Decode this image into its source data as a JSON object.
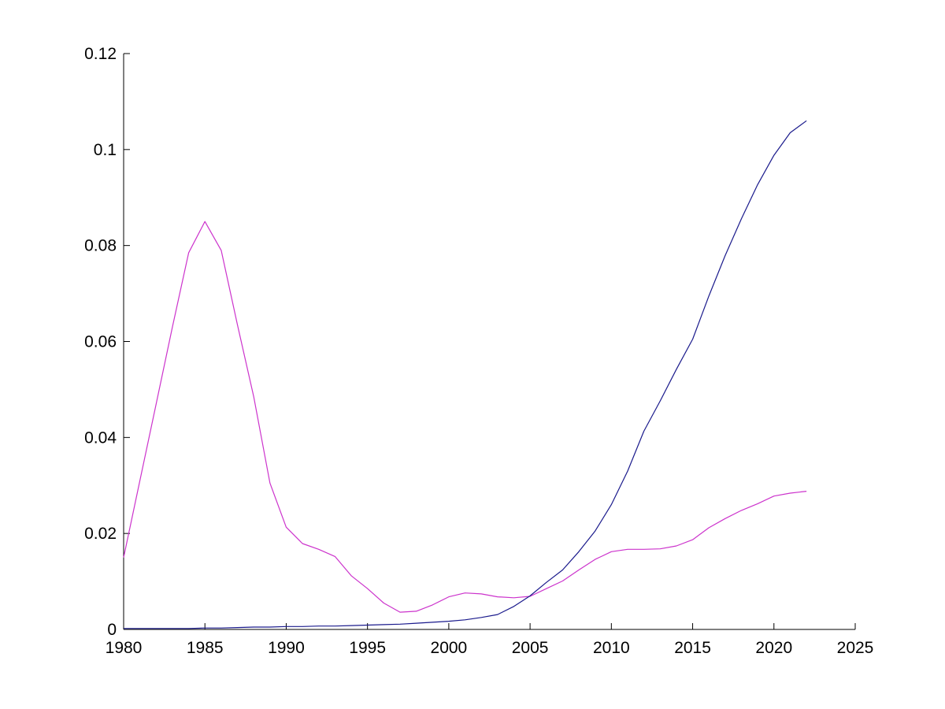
{
  "chart_data": {
    "type": "line",
    "title": "",
    "grid": false,
    "legend": false,
    "background": "#ffffff",
    "axis_color": "#000000",
    "xlim": [
      1980,
      2025
    ],
    "ylim": [
      0,
      0.12
    ],
    "x_ticks": [
      {
        "v": 1980,
        "label": "1980"
      },
      {
        "v": 1985,
        "label": "1985"
      },
      {
        "v": 1990,
        "label": "1990"
      },
      {
        "v": 1995,
        "label": "1995"
      },
      {
        "v": 2000,
        "label": "2000"
      },
      {
        "v": 2005,
        "label": "2005"
      },
      {
        "v": 2010,
        "label": "2010"
      },
      {
        "v": 2015,
        "label": "2015"
      },
      {
        "v": 2020,
        "label": "2020"
      },
      {
        "v": 2025,
        "label": "2025"
      }
    ],
    "y_ticks": [
      {
        "v": 0,
        "label": "0"
      },
      {
        "v": 0.02,
        "label": "0.02"
      },
      {
        "v": 0.04,
        "label": "0.04"
      },
      {
        "v": 0.06,
        "label": "0.06"
      },
      {
        "v": 0.08,
        "label": "0.08"
      },
      {
        "v": 0.1,
        "label": "0.1"
      },
      {
        "v": 0.12,
        "label": "0.12"
      }
    ],
    "x": [
      1980,
      1981,
      1982,
      1983,
      1984,
      1985,
      1986,
      1987,
      1988,
      1989,
      1990,
      1991,
      1992,
      1993,
      1994,
      1995,
      1996,
      1997,
      1998,
      1999,
      2000,
      2001,
      2002,
      2003,
      2004,
      2005,
      2006,
      2007,
      2008,
      2009,
      2010,
      2011,
      2012,
      2013,
      2014,
      2015,
      2016,
      2017,
      2018,
      2019,
      2020,
      2021,
      2022
    ],
    "series": [
      {
        "name": "magenta-series",
        "color": "#cc33cc",
        "values": [
          0.015,
          0.031,
          0.047,
          0.063,
          0.0785,
          0.085,
          0.079,
          0.0635,
          0.0485,
          0.0305,
          0.0213,
          0.0179,
          0.0167,
          0.0152,
          0.0112,
          0.0085,
          0.0055,
          0.0036,
          0.0038,
          0.0051,
          0.0068,
          0.0076,
          0.0074,
          0.0068,
          0.0066,
          0.0069,
          0.0085,
          0.0101,
          0.0124,
          0.0146,
          0.0162,
          0.0167,
          0.0167,
          0.0168,
          0.0174,
          0.0187,
          0.0212,
          0.0231,
          0.0248,
          0.0262,
          0.0278,
          0.0284,
          0.0288
        ]
      },
      {
        "name": "navy-series",
        "color": "#1a1a8c",
        "values": [
          0.0002,
          0.0002,
          0.0002,
          0.0002,
          0.0002,
          0.0003,
          0.0003,
          0.0004,
          0.0005,
          0.0005,
          0.0006,
          0.0006,
          0.0007,
          0.0007,
          0.0008,
          0.0009,
          0.001,
          0.0011,
          0.0013,
          0.0015,
          0.0017,
          0.002,
          0.0025,
          0.0031,
          0.0048,
          0.007,
          0.0098,
          0.0124,
          0.0162,
          0.0205,
          0.026,
          0.033,
          0.0413,
          0.0476,
          0.0542,
          0.0605,
          0.0695,
          0.0779,
          0.0856,
          0.0927,
          0.0988,
          0.1035,
          0.106
        ]
      }
    ]
  }
}
